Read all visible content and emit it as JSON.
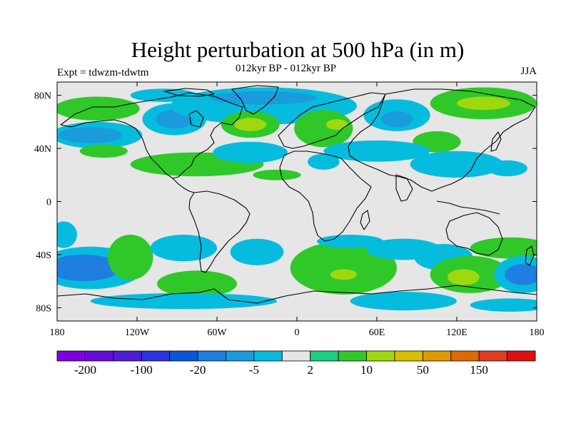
{
  "figure": {
    "title": "Height perturbation at 500 hPa (in m)",
    "subtitle": "012kyr BP - 012kyr BP",
    "left_label": "Expt = tdwzm-tdwtm",
    "right_label": "JJA"
  },
  "axes": {
    "lon_range": [
      -180,
      180
    ],
    "lat_range": [
      -90,
      90
    ],
    "x_ticks": [
      {
        "value": -180,
        "label": "180"
      },
      {
        "value": -120,
        "label": "120W"
      },
      {
        "value": -60,
        "label": "60W"
      },
      {
        "value": 0,
        "label": "0"
      },
      {
        "value": 60,
        "label": "60E"
      },
      {
        "value": 120,
        "label": "120E"
      },
      {
        "value": 180,
        "label": "180"
      }
    ],
    "y_ticks": [
      {
        "value": 80,
        "label": "80N"
      },
      {
        "value": 40,
        "label": "40N"
      },
      {
        "value": 0,
        "label": "0"
      },
      {
        "value": -40,
        "label": "40S"
      },
      {
        "value": -80,
        "label": "80S"
      }
    ]
  },
  "colorbar": {
    "colors": [
      "#7c00e0",
      "#6a0cd8",
      "#4d1ed4",
      "#2a34e0",
      "#0a55d8",
      "#1f7fe0",
      "#1a9bdc",
      "#06bcde",
      "#e6e6e6",
      "#18d080",
      "#30c828",
      "#a0d810",
      "#d8c000",
      "#e09800",
      "#e06800",
      "#e03c20",
      "#e01010"
    ],
    "labels": [
      {
        "index": 1,
        "text": "-200"
      },
      {
        "index": 3,
        "text": "-100"
      },
      {
        "index": 5,
        "text": "-20"
      },
      {
        "index": 7,
        "text": "-5"
      },
      {
        "index": 9,
        "text": "2"
      },
      {
        "index": 11,
        "text": "10"
      },
      {
        "index": 13,
        "text": "50"
      },
      {
        "index": 15,
        "text": "150"
      }
    ]
  },
  "field_features": [
    {
      "lon": -150,
      "lat": 70,
      "rx": 32,
      "ry": 9,
      "color": "#30c828"
    },
    {
      "lon": -150,
      "lat": 50,
      "rx": 34,
      "ry": 10,
      "color": "#06bcde"
    },
    {
      "lon": -155,
      "lat": 50,
      "rx": 24,
      "ry": 6,
      "color": "#1a9bdc"
    },
    {
      "lon": -100,
      "lat": 80,
      "rx": 25,
      "ry": 5,
      "color": "#06bcde"
    },
    {
      "lon": -92,
      "lat": 62,
      "rx": 24,
      "ry": 12,
      "color": "#06bcde"
    },
    {
      "lon": -92,
      "lat": 62,
      "rx": 14,
      "ry": 7,
      "color": "#1a9bdc"
    },
    {
      "lon": -145,
      "lat": 38,
      "rx": 18,
      "ry": 5,
      "color": "#30c828"
    },
    {
      "lon": -75,
      "lat": 28,
      "rx": 50,
      "ry": 9,
      "color": "#30c828"
    },
    {
      "lon": -25,
      "lat": 72,
      "rx": 70,
      "ry": 14,
      "color": "#06bcde"
    },
    {
      "lon": -25,
      "lat": 78,
      "rx": 40,
      "ry": 5,
      "color": "#1a9bdc"
    },
    {
      "lon": -35,
      "lat": 58,
      "rx": 22,
      "ry": 10,
      "color": "#30c828"
    },
    {
      "lon": -35,
      "lat": 58,
      "rx": 12,
      "ry": 5,
      "color": "#a0d810"
    },
    {
      "lon": 20,
      "lat": 55,
      "rx": 22,
      "ry": 14,
      "color": "#30c828"
    },
    {
      "lon": 30,
      "lat": 58,
      "rx": 8,
      "ry": 4,
      "color": "#a0d810"
    },
    {
      "lon": -35,
      "lat": 37,
      "rx": 28,
      "ry": 8,
      "color": "#06bcde"
    },
    {
      "lon": 20,
      "lat": 30,
      "rx": 12,
      "ry": 6,
      "color": "#06bcde"
    },
    {
      "lon": -15,
      "lat": 20,
      "rx": 18,
      "ry": 4,
      "color": "#30c828"
    },
    {
      "lon": 75,
      "lat": 65,
      "rx": 25,
      "ry": 12,
      "color": "#06bcde"
    },
    {
      "lon": 75,
      "lat": 62,
      "rx": 12,
      "ry": 6,
      "color": "#1a9bdc"
    },
    {
      "lon": 105,
      "lat": 45,
      "rx": 18,
      "ry": 8,
      "color": "#30c828"
    },
    {
      "lon": 140,
      "lat": 74,
      "rx": 40,
      "ry": 12,
      "color": "#30c828"
    },
    {
      "lon": 140,
      "lat": 74,
      "rx": 20,
      "ry": 5,
      "color": "#a0d810"
    },
    {
      "lon": 60,
      "lat": 38,
      "rx": 40,
      "ry": 8,
      "color": "#06bcde"
    },
    {
      "lon": 120,
      "lat": 28,
      "rx": 35,
      "ry": 10,
      "color": "#06bcde"
    },
    {
      "lon": 158,
      "lat": 25,
      "rx": 15,
      "ry": 6,
      "color": "#06bcde"
    },
    {
      "lon": -175,
      "lat": -25,
      "rx": 10,
      "ry": 10,
      "color": "#06bcde"
    },
    {
      "lon": -155,
      "lat": -50,
      "rx": 40,
      "ry": 16,
      "color": "#06bcde"
    },
    {
      "lon": -160,
      "lat": -50,
      "rx": 28,
      "ry": 10,
      "color": "#1f7fe0"
    },
    {
      "lon": -125,
      "lat": -42,
      "rx": 17,
      "ry": 17,
      "color": "#30c828"
    },
    {
      "lon": -85,
      "lat": -35,
      "rx": 25,
      "ry": 10,
      "color": "#06bcde"
    },
    {
      "lon": -75,
      "lat": -62,
      "rx": 30,
      "ry": 10,
      "color": "#30c828"
    },
    {
      "lon": -85,
      "lat": -75,
      "rx": 70,
      "ry": 6,
      "color": "#06bcde"
    },
    {
      "lon": -30,
      "lat": -38,
      "rx": 20,
      "ry": 10,
      "color": "#06bcde"
    },
    {
      "lon": 35,
      "lat": -50,
      "rx": 40,
      "ry": 20,
      "color": "#30c828"
    },
    {
      "lon": 35,
      "lat": -55,
      "rx": 10,
      "ry": 4,
      "color": "#a0d810"
    },
    {
      "lon": 40,
      "lat": -30,
      "rx": 25,
      "ry": 5,
      "color": "#06bcde"
    },
    {
      "lon": 80,
      "lat": -36,
      "rx": 28,
      "ry": 8,
      "color": "#06bcde"
    },
    {
      "lon": 80,
      "lat": -75,
      "rx": 40,
      "ry": 7,
      "color": "#06bcde"
    },
    {
      "lon": 110,
      "lat": -42,
      "rx": 22,
      "ry": 10,
      "color": "#06bcde"
    },
    {
      "lon": 130,
      "lat": -55,
      "rx": 30,
      "ry": 14,
      "color": "#30c828"
    },
    {
      "lon": 125,
      "lat": -57,
      "rx": 12,
      "ry": 6,
      "color": "#a0d810"
    },
    {
      "lon": 160,
      "lat": -35,
      "rx": 30,
      "ry": 8,
      "color": "#30c828"
    },
    {
      "lon": 170,
      "lat": -55,
      "rx": 22,
      "ry": 14,
      "color": "#06bcde"
    },
    {
      "lon": 170,
      "lat": -55,
      "rx": 14,
      "ry": 8,
      "color": "#1f7fe0"
    },
    {
      "lon": 160,
      "lat": -78,
      "rx": 30,
      "ry": 5,
      "color": "#06bcde"
    }
  ]
}
